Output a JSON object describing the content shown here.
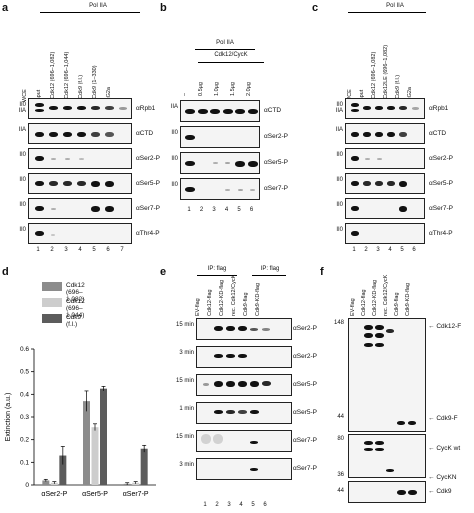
{
  "panels": {
    "a": {
      "letter": "a",
      "header": "Pol IIA",
      "columns": [
        "WCE",
        "Input",
        "+Cdk12 (696–1,082)",
        "+Cdk12 (696–1,044)",
        "+Cdk9 (f.l.)",
        "+Cdk9 (1–330)",
        "IgG2a"
      ],
      "lanes": [
        "1",
        "2",
        "3",
        "4",
        "5",
        "6",
        "7"
      ],
      "blots": [
        {
          "left": "II0\nIIA",
          "right": "αRpb1"
        },
        {
          "left": "IIA",
          "right": "αCTD"
        },
        {
          "left": "II0",
          "right": "αSer2-P"
        },
        {
          "left": "II0",
          "right": "αSer5-P"
        },
        {
          "left": "II0",
          "right": "αSer7-P"
        },
        {
          "left": "II0",
          "right": "αThr4-P"
        }
      ]
    },
    "b": {
      "letter": "b",
      "header": "Pol IIA",
      "subheader": "Cdk12/CycK",
      "columns": [
        "–",
        "0.5μg",
        "1.0μg",
        "1.5μg",
        "2.0μg"
      ],
      "lanes": [
        "1",
        "2",
        "3",
        "4",
        "5",
        "6"
      ],
      "blots": [
        {
          "left": "IIA",
          "right": "αCTD"
        },
        {
          "left": "II0",
          "right": "αSer2-P"
        },
        {
          "left": "II0",
          "right": "αSer5-P"
        },
        {
          "left": "II0",
          "right": "αSer7-P"
        }
      ]
    },
    "c": {
      "letter": "c",
      "header": "Pol IIA",
      "columns": [
        "WCE",
        "Input",
        "+Cdk12 (696–1,082)",
        "+Cdk12LE (696–1,082)",
        "+Cdk9 (f.l.)",
        "IgG2a"
      ],
      "lanes": [
        "1",
        "2",
        "3",
        "4",
        "5",
        "6"
      ],
      "blots": [
        {
          "left": "II0\nIIA",
          "right": "αRpb1"
        },
        {
          "left": "IIA",
          "right": "αCTD"
        },
        {
          "left": "II0",
          "right": "αSer2-P"
        },
        {
          "left": "II0",
          "right": "αSer5-P"
        },
        {
          "left": "II0",
          "right": "αSer7-P"
        },
        {
          "left": "II0",
          "right": "αThr4-P"
        }
      ]
    },
    "d": {
      "letter": "d"
    },
    "e": {
      "letter": "e",
      "header_left": "IP: flag",
      "header_right": "IP: flag",
      "columns": [
        "EV-flag",
        "Cdk12-flag",
        "Cdk12-KD-flag",
        "rec. Cdk12/CycK",
        "Cdk9-flag",
        "Cdk9-KD-flag"
      ],
      "lanes": [
        "1",
        "2",
        "3",
        "4",
        "5",
        "6"
      ],
      "blots": [
        {
          "left": "15 min",
          "right": "αSer2-P"
        },
        {
          "left": "3 min",
          "right": "αSer2-P"
        },
        {
          "left": "15 min",
          "right": "αSer5-P"
        },
        {
          "left": "1 min",
          "right": "αSer5-P"
        },
        {
          "left": "15 min",
          "right": "αSer7-P"
        },
        {
          "left": "3 min",
          "right": "αSer7-P"
        }
      ]
    },
    "f": {
      "letter": "f",
      "columns": [
        "EV-flag",
        "Cdk12-flag",
        "Cdk12-KD-flag",
        "rec. Cdk12/CycK",
        "Cdk9-flag",
        "Cdk9-KD-flag"
      ],
      "markers": [
        "148",
        "44",
        "80",
        "36",
        "44"
      ],
      "labels": [
        "Cdk12-F",
        "Cdk9-F",
        "CycK wt",
        "CycKN",
        "Cdk9"
      ]
    }
  },
  "chart_data": {
    "type": "bar",
    "categories": [
      "αSer2-P",
      "αSer5-P",
      "αSer7-P"
    ],
    "series": [
      {
        "name": "Cdk12 (696–1,082)",
        "color": "#8c8c8c",
        "values": [
          0.02,
          0.37,
          0.005
        ],
        "errors": [
          0.005,
          0.045,
          0.005
        ]
      },
      {
        "name": "Cdk12 (696–1,044)",
        "color": "#cdcdcd",
        "values": [
          0.01,
          0.255,
          0.01
        ],
        "errors": [
          0.005,
          0.015,
          0.005
        ]
      },
      {
        "name": "Cdk9 (f.l.)",
        "color": "#5c5c5c",
        "values": [
          0.13,
          0.425,
          0.16
        ],
        "errors": [
          0.04,
          0.01,
          0.015
        ]
      }
    ],
    "ylabel": "Extinction (a.u.)",
    "ylim": [
      0,
      0.6
    ],
    "yticks": [
      "0",
      "0.1",
      "0.2",
      "0.3",
      "0.4",
      "0.5",
      "0.6"
    ],
    "legend": "top"
  }
}
